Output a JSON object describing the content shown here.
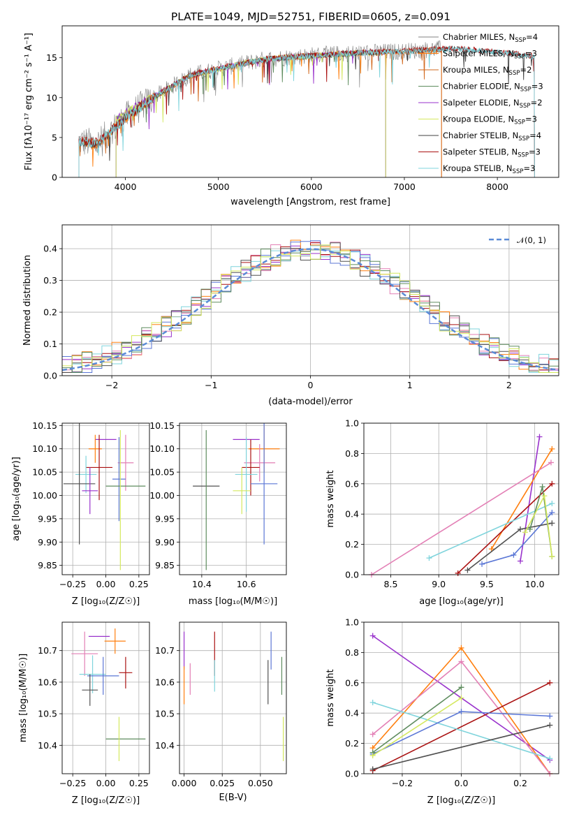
{
  "chart_data": [
    {
      "type": "line",
      "title": "PLATE=1049, MJD=52751, FIBERID=0605, z=0.091",
      "xlabel": "wavelength [Angstrom, rest frame]",
      "ylabel": "Flux [fλ10⁻¹⁷ erg cm⁻² s⁻¹ A⁻¹]",
      "xlim": [
        3320,
        8660
      ],
      "ylim": [
        0,
        19
      ],
      "xticks": [
        "4000",
        "5000",
        "6000",
        "7000",
        "8000"
      ],
      "yticks": [
        "0",
        "5",
        "10",
        "15"
      ],
      "legend_position": "upper-right",
      "series": [
        {
          "name": "Chabrier MILES, N_SSP=4",
          "x": [
            3500,
            3700,
            4000,
            4300,
            4700,
            5000,
            5500,
            6000,
            6500,
            7000,
            7400
          ],
          "y": [
            4.5,
            4.2,
            7.5,
            10.0,
            12.8,
            13.6,
            14.8,
            15.3,
            15.6,
            15.8,
            16.1
          ]
        },
        {
          "name": "Salpeter MILES, N_SSP=3",
          "x": [
            3500,
            3700,
            4000,
            4300,
            4700,
            5000,
            5500,
            6000,
            6500,
            7000,
            7400
          ],
          "y": [
            4.5,
            4.2,
            7.4,
            10.0,
            12.8,
            13.6,
            14.8,
            15.2,
            15.6,
            15.8,
            16.0
          ]
        },
        {
          "name": "Kroupa MILES, N_SSP=2",
          "x": [
            3500,
            3700,
            4000,
            4300,
            4700,
            5000,
            5500,
            6000,
            6500,
            7000,
            7400
          ],
          "y": [
            4.4,
            4.1,
            7.4,
            10.0,
            12.7,
            13.5,
            14.8,
            15.2,
            15.5,
            15.7,
            16.0
          ]
        },
        {
          "name": "Chabrier ELODIE, N_SSP=3",
          "x": [
            3900,
            4300,
            4700,
            5000,
            5500,
            6000,
            6500,
            6800
          ],
          "y": [
            7.2,
            10.0,
            12.8,
            13.6,
            14.8,
            15.2,
            15.6,
            15.7
          ]
        },
        {
          "name": "Salpeter ELODIE, N_SSP=2",
          "x": [
            3900,
            4300,
            4700,
            5000,
            5500,
            6000,
            6500,
            6800
          ],
          "y": [
            7.3,
            10.1,
            12.8,
            13.6,
            14.8,
            15.3,
            15.6,
            15.7
          ]
        },
        {
          "name": "Kroupa ELODIE, N_SSP=3",
          "x": [
            3900,
            4300,
            4700,
            5000,
            5500,
            6000,
            6500,
            6800
          ],
          "y": [
            7.2,
            10.0,
            12.8,
            13.6,
            14.9,
            15.3,
            15.6,
            15.7
          ]
        },
        {
          "name": "Chabrier STELIB, N_SSP=4",
          "x": [
            3500,
            3700,
            4000,
            4300,
            4700,
            5000,
            5500,
            6000,
            6500,
            7000,
            7500,
            8000,
            8400
          ],
          "y": [
            4.5,
            4.2,
            7.4,
            10.0,
            12.8,
            13.6,
            14.8,
            15.2,
            15.6,
            15.8,
            16.1,
            15.7,
            15.1
          ]
        },
        {
          "name": "Salpeter STELIB, N_SSP=3",
          "x": [
            3500,
            3700,
            4000,
            4300,
            4700,
            5000,
            5500,
            6000,
            6500,
            7000,
            7500,
            8000,
            8400
          ],
          "y": [
            4.6,
            4.3,
            7.5,
            10.1,
            12.9,
            13.7,
            14.9,
            15.3,
            15.7,
            15.9,
            16.2,
            15.8,
            15.2
          ]
        },
        {
          "name": "Kroupa STELIB, N_SSP=3",
          "x": [
            3500,
            3700,
            4000,
            4300,
            4700,
            5000,
            5500,
            6000,
            6500,
            7000,
            7500,
            8000,
            8400
          ],
          "y": [
            4.5,
            4.2,
            7.4,
            10.0,
            12.8,
            13.6,
            14.8,
            15.2,
            15.6,
            15.8,
            16.1,
            15.7,
            15.1
          ]
        }
      ],
      "colors": [
        "#808080",
        "#ff7f0e",
        "#d2691e",
        "#5e8c5e",
        "#9932cc",
        "#d4e85e",
        "#404040",
        "#aa1111",
        "#7fd4dc"
      ]
    },
    {
      "type": "histogram",
      "title": "",
      "xlabel": "(data-model)/error",
      "ylabel": "Normed distribution",
      "xlim": [
        -2.5,
        2.5
      ],
      "ylim": [
        0,
        0.475
      ],
      "xticks": [
        "−2",
        "−1",
        "0",
        "1",
        "2"
      ],
      "yticks": [
        "0.0",
        "0.1",
        "0.2",
        "0.3",
        "0.4"
      ],
      "grid": true,
      "bin_width": 0.1,
      "reference_curve": {
        "name": "𝒩(0, 1)",
        "style": "dashed",
        "color": "#5b8bd6"
      },
      "legend_position": "upper-right",
      "histogram_series_count": 9
    },
    {
      "type": "scatter",
      "title": "",
      "xlabel": "Z [log₁₀(Z/Z☉)]",
      "ylabel": "age  [log₁₀(age/yr)]",
      "xlim": [
        -0.33,
        0.33
      ],
      "ylim": [
        9.83,
        10.155
      ],
      "xticks": [
        "−0.25",
        "0.00",
        "0.25"
      ],
      "yticks": [
        "9.85",
        "9.90",
        "9.95",
        "10.00",
        "10.05",
        "10.10",
        "10.15"
      ],
      "grid": true,
      "points": [
        {
          "x": 0.0,
          "y": 10.12,
          "xerr": 0.08,
          "yerr": 0.0
        },
        {
          "x": -0.08,
          "y": 10.1,
          "xerr": 0.05,
          "yerr": 0.03
        },
        {
          "x": 0.15,
          "y": 10.07,
          "xerr": 0.06,
          "yerr": 0.06
        },
        {
          "x": -0.05,
          "y": 10.06,
          "xerr": 0.1,
          "yerr": 0.07
        },
        {
          "x": -0.15,
          "y": 10.045,
          "xerr": 0.08,
          "yerr": 0.04
        },
        {
          "x": 0.1,
          "y": 10.035,
          "xerr": 0.05,
          "yerr": 0.09
        },
        {
          "x": -0.2,
          "y": 10.025,
          "xerr": 0.12,
          "yerr": 0.13
        },
        {
          "x": 0.15,
          "y": 10.02,
          "xerr": 0.15,
          "yerr": 0.0
        },
        {
          "x": 0.11,
          "y": 9.99,
          "xerr": 0.0,
          "yerr": 0.15
        },
        {
          "x": -0.12,
          "y": 10.01,
          "xerr": 0.06,
          "yerr": 0.05
        }
      ]
    },
    {
      "type": "scatter",
      "title": "",
      "xlabel": "mass [log₁₀(M/M☉)]",
      "ylabel": "",
      "xlim": [
        10.3,
        10.78
      ],
      "ylim": [
        9.83,
        10.155
      ],
      "xticks": [
        "10.4",
        "10.6"
      ],
      "yticks": [
        "9.85",
        "9.90",
        "9.95",
        "10.00",
        "10.05",
        "10.10",
        "10.15"
      ],
      "grid": true,
      "points": [
        {
          "x": 10.6,
          "y": 10.12,
          "xerr": 0.06,
          "yerr": 0.0
        },
        {
          "x": 10.68,
          "y": 10.1,
          "xerr": 0.07,
          "yerr": 0.05
        },
        {
          "x": 10.66,
          "y": 10.07,
          "xerr": 0.07,
          "yerr": 0.04
        },
        {
          "x": 10.62,
          "y": 10.06,
          "xerr": 0.04,
          "yerr": 0.06
        },
        {
          "x": 10.6,
          "y": 10.045,
          "xerr": 0.05,
          "yerr": 0.08
        },
        {
          "x": 10.68,
          "y": 10.025,
          "xerr": 0.06,
          "yerr": 0.13
        },
        {
          "x": 10.42,
          "y": 10.02,
          "xerr": 0.06,
          "yerr": 0.0
        },
        {
          "x": 10.42,
          "y": 9.99,
          "xerr": 0.0,
          "yerr": 0.15
        },
        {
          "x": 10.58,
          "y": 10.01,
          "xerr": 0.04,
          "yerr": 0.05
        }
      ]
    },
    {
      "type": "line",
      "title": "",
      "xlabel": "age  [log₁₀(age/yr)]",
      "ylabel": "mass weight",
      "xlim": [
        8.22,
        10.25
      ],
      "ylim": [
        0,
        1.0
      ],
      "xticks": [
        "8.5",
        "9.0",
        "9.5",
        "10.0"
      ],
      "yticks": [
        "0.0",
        "0.2",
        "0.4",
        "0.6",
        "0.8",
        "1.0"
      ],
      "grid": true,
      "series": [
        {
          "x": [
            9.85,
            10.05
          ],
          "y": [
            0.09,
            0.91
          ]
        },
        {
          "x": [
            9.55,
            10.18
          ],
          "y": [
            0.17,
            0.83
          ]
        },
        {
          "x": [
            8.3,
            10.17
          ],
          "y": [
            0.0,
            0.74
          ]
        },
        {
          "x": [
            9.2,
            10.18
          ],
          "y": [
            0.01,
            0.6
          ]
        },
        {
          "x": [
            8.9,
            10.18
          ],
          "y": [
            0.11,
            0.47
          ]
        },
        {
          "x": [
            9.45,
            9.78,
            10.18
          ],
          "y": [
            0.07,
            0.13,
            0.41
          ]
        },
        {
          "x": [
            9.3,
            9.85,
            10.18
          ],
          "y": [
            0.03,
            0.3,
            0.34
          ]
        },
        {
          "x": [
            9.95,
            10.08,
            10.18
          ],
          "y": [
            0.3,
            0.58,
            0.12
          ]
        },
        {
          "x": [
            9.9,
            10.1,
            10.18
          ],
          "y": [
            0.28,
            0.52,
            0.12
          ]
        }
      ]
    },
    {
      "type": "scatter",
      "title": "",
      "xlabel": "Z [log₁₀(Z/Z☉)]",
      "ylabel": "mass [log₁₀(M/M☉)]",
      "xlim": [
        -0.33,
        0.33
      ],
      "ylim": [
        10.31,
        10.79
      ],
      "xticks": [
        "−0.25",
        "0.00",
        "0.25"
      ],
      "yticks": [
        "10.4",
        "10.5",
        "10.6",
        "10.7"
      ],
      "grid": true,
      "points": [
        {
          "x": -0.05,
          "y": 10.745,
          "xerr": 0.08,
          "yerr": 0.0
        },
        {
          "x": 0.07,
          "y": 10.73,
          "xerr": 0.08,
          "yerr": 0.04
        },
        {
          "x": -0.16,
          "y": 10.69,
          "xerr": 0.1,
          "yerr": 0.07
        },
        {
          "x": 0.15,
          "y": 10.63,
          "xerr": 0.05,
          "yerr": 0.05
        },
        {
          "x": -0.1,
          "y": 10.625,
          "xerr": 0.1,
          "yerr": 0.06
        },
        {
          "x": -0.02,
          "y": 10.62,
          "xerr": 0.12,
          "yerr": 0.06
        },
        {
          "x": -0.12,
          "y": 10.575,
          "xerr": 0.06,
          "yerr": 0.05
        },
        {
          "x": 0.15,
          "y": 10.42,
          "xerr": 0.15,
          "yerr": 0.0
        },
        {
          "x": 0.1,
          "y": 10.42,
          "xerr": 0.0,
          "yerr": 0.07
        }
      ]
    },
    {
      "type": "scatter",
      "title": "",
      "xlabel": "E(B-V)",
      "ylabel": "",
      "xlim": [
        -0.003,
        0.067
      ],
      "ylim": [
        10.31,
        10.79
      ],
      "xticks": [
        "0.000",
        "0.025",
        "0.050"
      ],
      "yticks": [
        "10.4",
        "10.5",
        "10.6",
        "10.7"
      ],
      "grid": true,
      "points": [
        {
          "x": 0.0,
          "y": 10.7,
          "yerr": 0.06
        },
        {
          "x": 0.0,
          "y": 10.59,
          "yerr": 0.06
        },
        {
          "x": 0.004,
          "y": 10.61,
          "yerr": 0.05
        },
        {
          "x": 0.02,
          "y": 10.69,
          "yerr": 0.07
        },
        {
          "x": 0.02,
          "y": 10.62,
          "yerr": 0.05
        },
        {
          "x": 0.057,
          "y": 10.7,
          "yerr": 0.06
        },
        {
          "x": 0.055,
          "y": 10.6,
          "yerr": 0.07
        },
        {
          "x": 0.064,
          "y": 10.62,
          "yerr": 0.06
        },
        {
          "x": 0.065,
          "y": 10.42,
          "yerr": 0.07
        }
      ]
    },
    {
      "type": "line",
      "title": "",
      "xlabel": "Z [log₁₀(Z/Z☉)]",
      "ylabel": "mass weight",
      "xlim": [
        -0.33,
        0.33
      ],
      "ylim": [
        0,
        1.0
      ],
      "xticks": [
        "−0.2",
        "0.0",
        "0.2"
      ],
      "yticks": [
        "0.0",
        "0.2",
        "0.4",
        "0.6",
        "0.8",
        "1.0"
      ],
      "grid": true,
      "series": [
        {
          "x": [
            -0.3,
            0.3
          ],
          "y": [
            0.91,
            0.09
          ]
        },
        {
          "x": [
            -0.3,
            0.0,
            0.3
          ],
          "y": [
            0.17,
            0.83,
            0.0
          ]
        },
        {
          "x": [
            -0.3,
            0.0,
            0.3
          ],
          "y": [
            0.26,
            0.74,
            0.0
          ]
        },
        {
          "x": [
            -0.3,
            0.3
          ],
          "y": [
            0.02,
            0.6
          ]
        },
        {
          "x": [
            -0.3,
            0.3
          ],
          "y": [
            0.47,
            0.1
          ]
        },
        {
          "x": [
            -0.3,
            0.0,
            0.3
          ],
          "y": [
            0.13,
            0.41,
            0.38
          ]
        },
        {
          "x": [
            -0.3,
            0.3
          ],
          "y": [
            0.03,
            0.32
          ]
        },
        {
          "x": [
            -0.3,
            0.0
          ],
          "y": [
            0.14,
            0.57
          ]
        },
        {
          "x": [
            -0.3,
            0.0
          ],
          "y": [
            0.12,
            0.5
          ]
        }
      ]
    }
  ],
  "panel_colors": [
    "#9932cc",
    "#ff7f0e",
    "#e37fb5",
    "#aa1111",
    "#7fd4dc",
    "#5b77d6",
    "#505050",
    "#5e8c5e",
    "#d4e85e"
  ]
}
